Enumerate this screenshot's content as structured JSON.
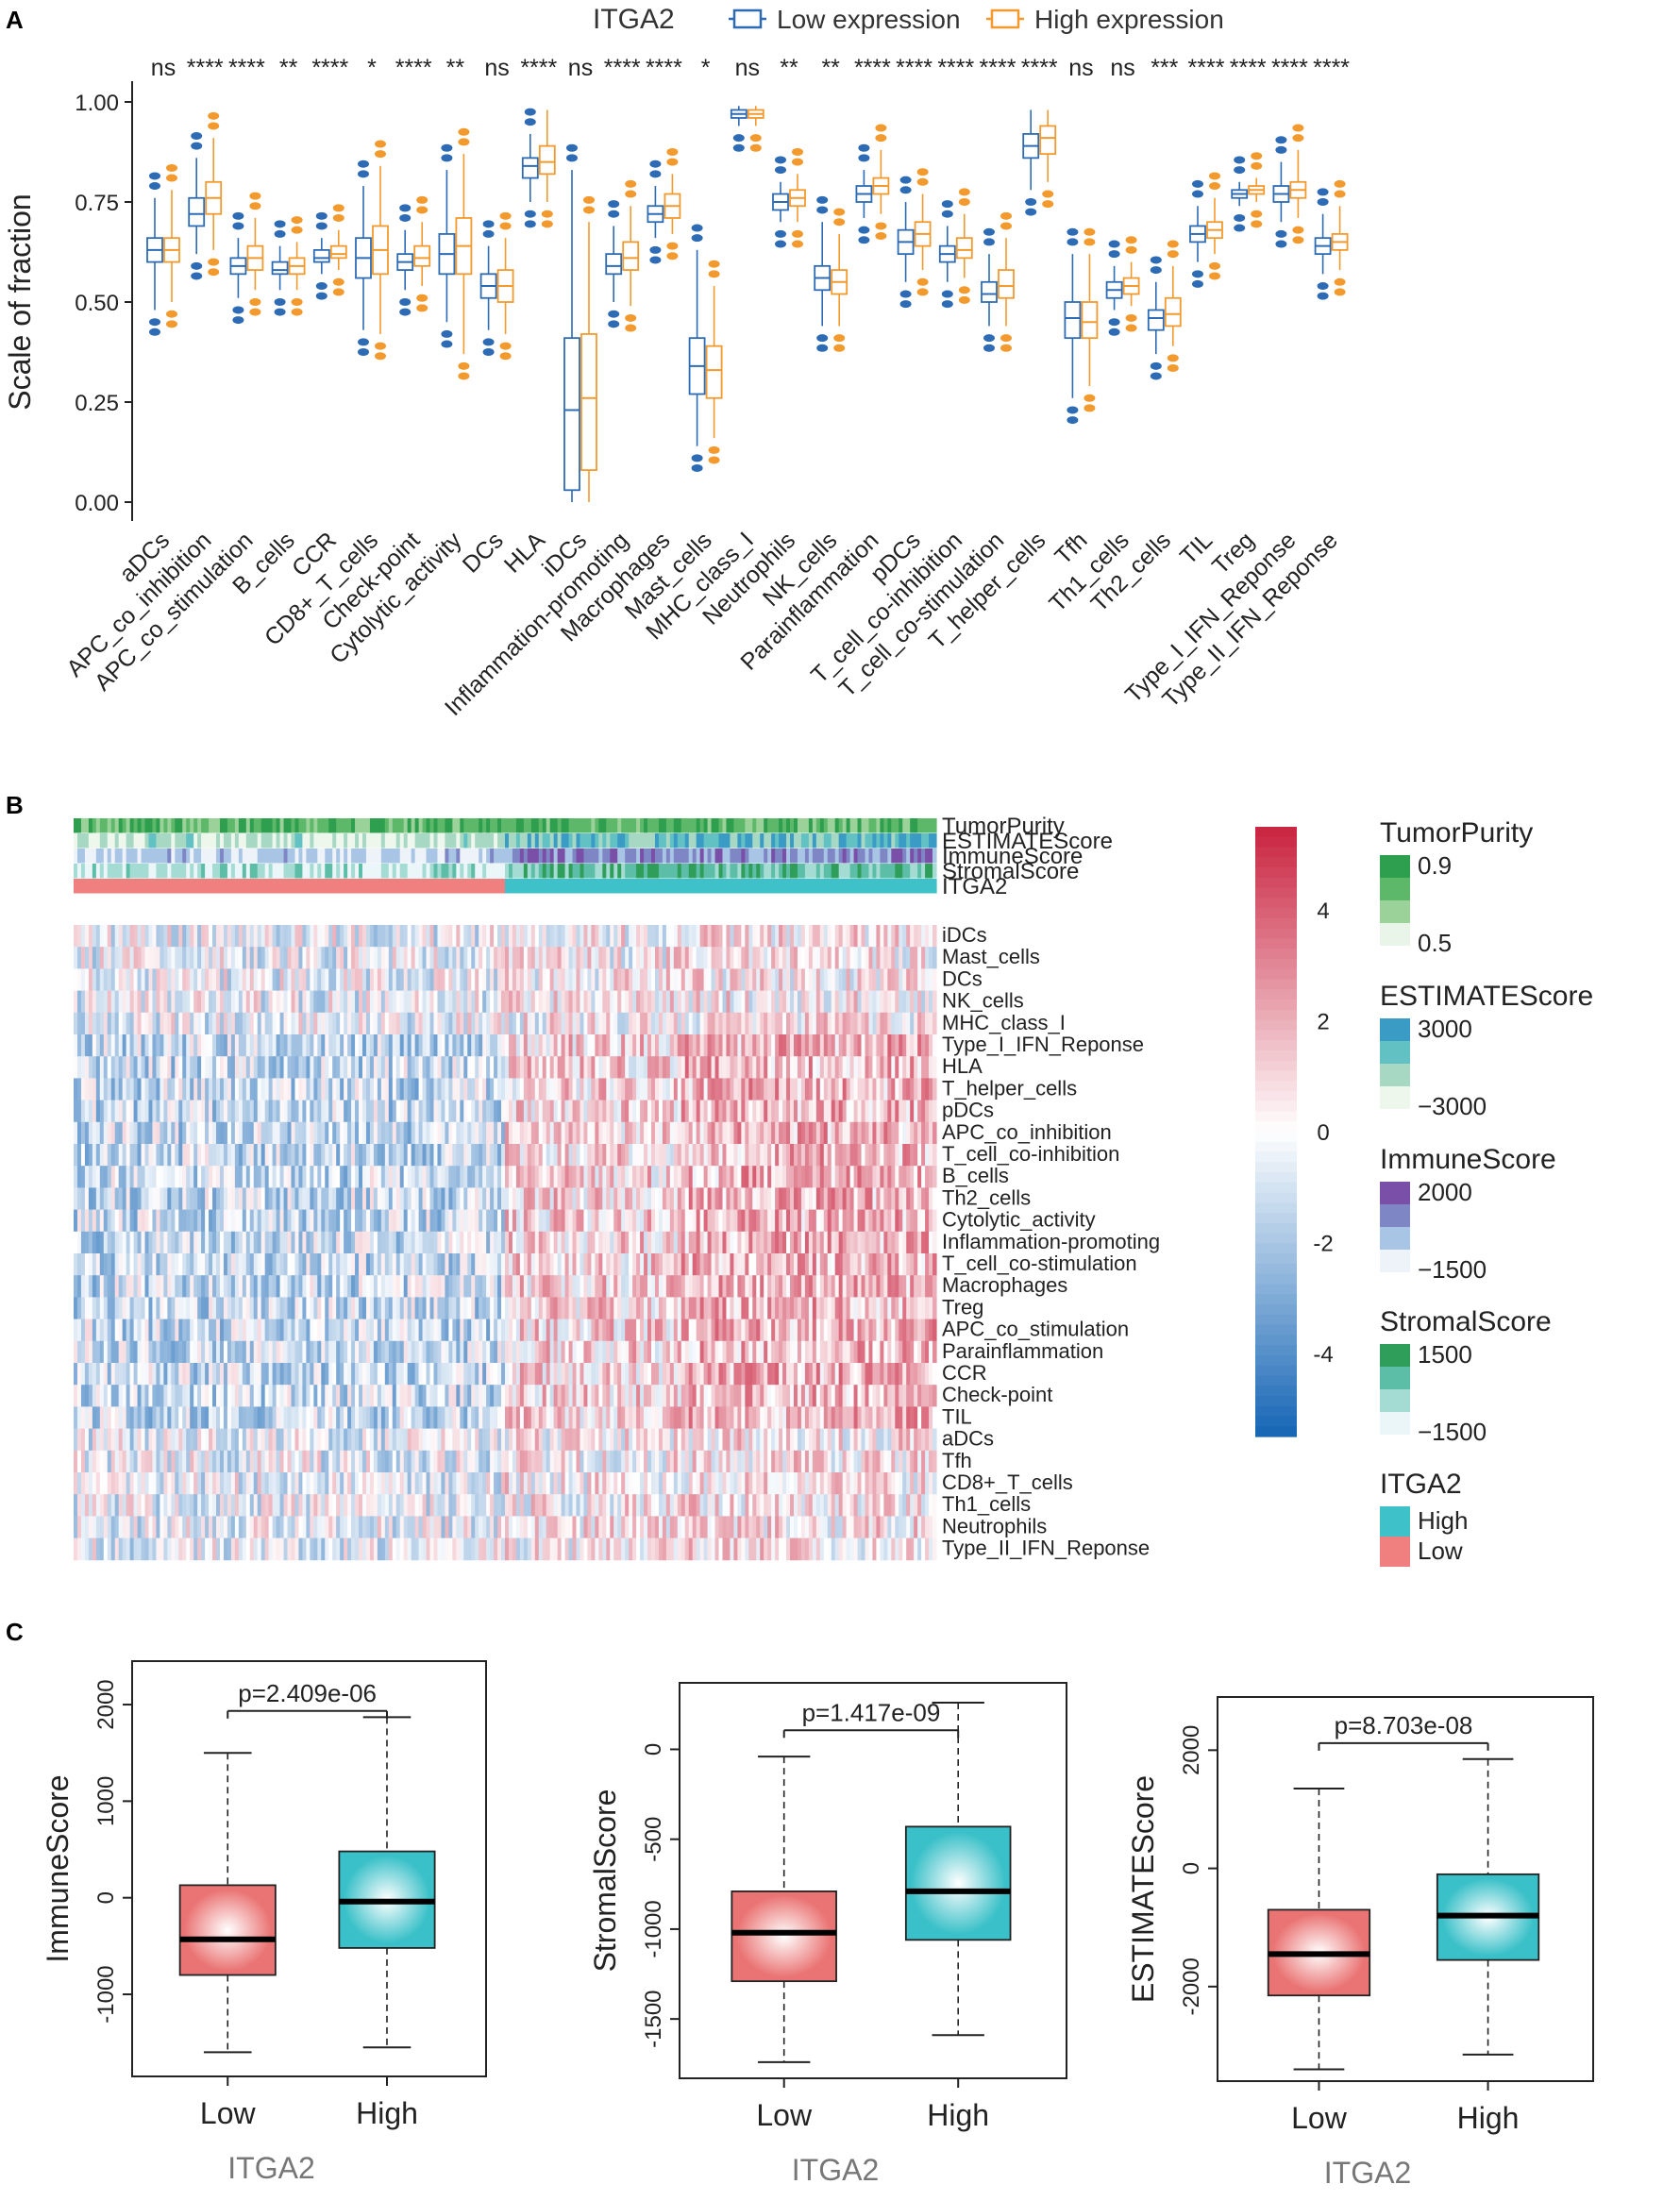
{
  "panel_labels": {
    "a": "A",
    "b": "B",
    "c": "C"
  },
  "chart_data": [
    {
      "id": "panelA",
      "type": "box",
      "title": "ITGA2",
      "legend": [
        {
          "name": "Low expression",
          "color": "#2D6BB5"
        },
        {
          "name": "High expression",
          "color": "#F39A2E"
        }
      ],
      "ylabel": "Scale of fraction",
      "ylim": [
        0,
        1
      ],
      "yticks": [
        "0.00",
        "0.25",
        "0.50",
        "0.75",
        "1.00"
      ],
      "categories": [
        "aDCs",
        "APC_co_inhibition",
        "APC_co_stimulation",
        "B_cells",
        "CCR",
        "CD8+_T_cells",
        "Check-point",
        "Cytolytic_activity",
        "DCs",
        "HLA",
        "iDCs",
        "Inflammation-promoting",
        "Macrophages",
        "Mast_cells",
        "MHC_class_I",
        "Neutrophils",
        "NK_cells",
        "Parainflammation",
        "pDCs",
        "T_cell_co-inhibition",
        "T_cell_co-stimulation",
        "T_helper_cells",
        "Tfh",
        "Th1_cells",
        "Th2_cells",
        "TIL",
        "Treg",
        "Type_I_IFN_Reponse",
        "Type_II_IFN_Reponse"
      ],
      "significance": [
        "ns",
        "****",
        "****",
        "**",
        "****",
        "*",
        "****",
        "**",
        "ns",
        "****",
        "ns",
        "****",
        "****",
        "*",
        "ns",
        "**",
        "**",
        "****",
        "****",
        "****",
        "****",
        "****",
        "ns",
        "ns",
        "***",
        "****",
        "****",
        "****",
        "****"
      ],
      "series": [
        {
          "name": "Low expression",
          "boxes": [
            [
              0.48,
              0.6,
              0.63,
              0.66,
              0.76
            ],
            [
              0.62,
              0.69,
              0.72,
              0.76,
              0.86
            ],
            [
              0.51,
              0.57,
              0.59,
              0.61,
              0.66
            ],
            [
              0.53,
              0.57,
              0.58,
              0.6,
              0.64
            ],
            [
              0.57,
              0.6,
              0.61,
              0.63,
              0.66
            ],
            [
              0.43,
              0.56,
              0.61,
              0.66,
              0.79
            ],
            [
              0.53,
              0.58,
              0.6,
              0.62,
              0.68
            ],
            [
              0.45,
              0.57,
              0.62,
              0.67,
              0.83
            ],
            [
              0.43,
              0.51,
              0.54,
              0.57,
              0.64
            ],
            [
              0.75,
              0.81,
              0.84,
              0.86,
              0.92
            ],
            [
              0.0,
              0.03,
              0.23,
              0.41,
              0.83
            ],
            [
              0.5,
              0.57,
              0.59,
              0.62,
              0.69
            ],
            [
              0.66,
              0.7,
              0.72,
              0.74,
              0.79
            ],
            [
              0.14,
              0.27,
              0.34,
              0.41,
              0.63
            ],
            [
              0.94,
              0.96,
              0.97,
              0.98,
              0.99
            ],
            [
              0.7,
              0.73,
              0.75,
              0.77,
              0.8
            ],
            [
              0.44,
              0.53,
              0.56,
              0.59,
              0.7
            ],
            [
              0.71,
              0.75,
              0.77,
              0.79,
              0.83
            ],
            [
              0.55,
              0.62,
              0.65,
              0.68,
              0.75
            ],
            [
              0.55,
              0.6,
              0.62,
              0.64,
              0.69
            ],
            [
              0.44,
              0.5,
              0.52,
              0.55,
              0.62
            ],
            [
              0.78,
              0.86,
              0.89,
              0.92,
              0.98
            ],
            [
              0.26,
              0.41,
              0.46,
              0.5,
              0.62
            ],
            [
              0.48,
              0.51,
              0.53,
              0.55,
              0.59
            ],
            [
              0.37,
              0.43,
              0.46,
              0.48,
              0.55
            ],
            [
              0.6,
              0.65,
              0.67,
              0.69,
              0.74
            ],
            [
              0.74,
              0.76,
              0.77,
              0.78,
              0.8
            ],
            [
              0.7,
              0.75,
              0.77,
              0.79,
              0.85
            ],
            [
              0.57,
              0.62,
              0.64,
              0.66,
              0.72
            ]
          ]
        },
        {
          "name": "High expression",
          "boxes": [
            [
              0.5,
              0.6,
              0.63,
              0.66,
              0.78
            ],
            [
              0.63,
              0.72,
              0.76,
              0.8,
              0.91
            ],
            [
              0.53,
              0.58,
              0.61,
              0.64,
              0.71
            ],
            [
              0.53,
              0.57,
              0.59,
              0.61,
              0.65
            ],
            [
              0.58,
              0.61,
              0.62,
              0.64,
              0.68
            ],
            [
              0.42,
              0.57,
              0.63,
              0.69,
              0.84
            ],
            [
              0.54,
              0.59,
              0.61,
              0.64,
              0.7
            ],
            [
              0.37,
              0.57,
              0.64,
              0.71,
              0.87
            ],
            [
              0.42,
              0.5,
              0.54,
              0.58,
              0.66
            ],
            [
              0.75,
              0.82,
              0.85,
              0.89,
              0.98
            ],
            [
              0.0,
              0.08,
              0.26,
              0.42,
              0.7
            ],
            [
              0.49,
              0.58,
              0.61,
              0.65,
              0.74
            ],
            [
              0.67,
              0.71,
              0.74,
              0.77,
              0.82
            ],
            [
              0.16,
              0.26,
              0.33,
              0.39,
              0.54
            ],
            [
              0.94,
              0.96,
              0.97,
              0.98,
              0.99
            ],
            [
              0.7,
              0.74,
              0.76,
              0.78,
              0.82
            ],
            [
              0.44,
              0.52,
              0.55,
              0.58,
              0.67
            ],
            [
              0.72,
              0.77,
              0.79,
              0.81,
              0.88
            ],
            [
              0.58,
              0.64,
              0.67,
              0.7,
              0.77
            ],
            [
              0.56,
              0.61,
              0.63,
              0.66,
              0.72
            ],
            [
              0.44,
              0.51,
              0.54,
              0.58,
              0.66
            ],
            [
              0.8,
              0.87,
              0.91,
              0.94,
              0.98
            ],
            [
              0.29,
              0.41,
              0.45,
              0.5,
              0.62
            ],
            [
              0.49,
              0.52,
              0.54,
              0.56,
              0.6
            ],
            [
              0.39,
              0.44,
              0.47,
              0.51,
              0.59
            ],
            [
              0.62,
              0.66,
              0.68,
              0.7,
              0.76
            ],
            [
              0.75,
              0.77,
              0.78,
              0.79,
              0.81
            ],
            [
              0.71,
              0.76,
              0.78,
              0.8,
              0.88
            ],
            [
              0.58,
              0.63,
              0.65,
              0.67,
              0.74
            ]
          ]
        }
      ]
    },
    {
      "id": "panelB",
      "type": "heatmap",
      "annotation_rows": [
        "TumorPurity",
        "ESTIMATEScore",
        "ImmuneScore",
        "StromalScore",
        "ITGA2"
      ],
      "rows": [
        "iDCs",
        "Mast_cells",
        "DCs",
        "NK_cells",
        "MHC_class_I",
        "Type_I_IFN_Reponse",
        "HLA",
        "T_helper_cells",
        "pDCs",
        "APC_co_inhibition",
        "T_cell_co-inhibition",
        "B_cells",
        "Th2_cells",
        "Cytolytic_activity",
        "Inflammation-promoting",
        "T_cell_co-stimulation",
        "Macrophages",
        "Treg",
        "APC_co_stimulation",
        "Parainflammation",
        "CCR",
        "Check-point",
        "TIL",
        "aDCs",
        "Tfh",
        "CD8+_T_cells",
        "Th1_cells",
        "Neutrophils",
        "Type_II_IFN_Reponse"
      ],
      "group_split_fraction": 0.5,
      "colorbar": {
        "min": -5.5,
        "max": 5.5,
        "ticks": [
          4,
          2,
          0,
          -2,
          -4
        ],
        "low_color": "#1565B5",
        "mid_color": "#FFFFFF",
        "high_color": "#C9233F"
      },
      "legends": [
        {
          "title": "TumorPurity",
          "labels": [
            "0.9",
            "0.5"
          ],
          "colors": [
            "#2E9E4F",
            "#5DB86A",
            "#9AD29A",
            "#E8F5E8"
          ]
        },
        {
          "title": "ESTIMATEScore",
          "labels": [
            "3000",
            "−3000"
          ],
          "colors": [
            "#3A9CC5",
            "#62C1C2",
            "#A6D8C4",
            "#EEF7EC"
          ]
        },
        {
          "title": "ImmuneScore",
          "labels": [
            "2000",
            "−1500"
          ],
          "colors": [
            "#7A4FA8",
            "#7E86C6",
            "#A9C5E6",
            "#EEF3FA"
          ]
        },
        {
          "title": "StromalScore",
          "labels": [
            "1500",
            "−1500"
          ],
          "colors": [
            "#2F9E5A",
            "#5DBEA8",
            "#A4DCD4",
            "#EAF6F7"
          ]
        },
        {
          "title": "ITGA2",
          "labels": [
            "High",
            "Low"
          ],
          "colors": [
            "#3FC1C9",
            "#F08080"
          ]
        }
      ]
    },
    {
      "id": "panelC1",
      "type": "box",
      "xlabel": "ITGA2",
      "ylabel": "ImmuneScore",
      "ylim": [
        -1850,
        2450
      ],
      "yticks": [
        -1000,
        0,
        1000,
        2000
      ],
      "pvalue": "p=2.409e-06",
      "categories": [
        "Low",
        "High"
      ],
      "boxes": [
        [
          -1600,
          -800,
          -430,
          130,
          1500
        ],
        [
          -1550,
          -520,
          -40,
          480,
          1870
        ]
      ]
    },
    {
      "id": "panelC2",
      "type": "box",
      "xlabel": "ITGA2",
      "ylabel": "StromalScore",
      "ylim": [
        -1830,
        370
      ],
      "yticks": [
        -1500,
        -1000,
        -500,
        0
      ],
      "pvalue": "p=1.417e-09",
      "categories": [
        "Low",
        "High"
      ],
      "boxes": [
        [
          -1740,
          -1290,
          -1020,
          -790,
          -40
        ],
        [
          -1590,
          -1060,
          -790,
          -430,
          260
        ]
      ]
    },
    {
      "id": "panelC3",
      "type": "box",
      "xlabel": "ITGA2",
      "ylabel": "ESTIMATEScore",
      "ylim": [
        -3600,
        2900
      ],
      "yticks": [
        -2000,
        0,
        2000
      ],
      "pvalue": "p=8.703e-08",
      "categories": [
        "Low",
        "High"
      ],
      "boxes": [
        [
          -3400,
          -2150,
          -1450,
          -700,
          1350
        ],
        [
          -3150,
          -1550,
          -800,
          -100,
          1850
        ]
      ]
    }
  ]
}
